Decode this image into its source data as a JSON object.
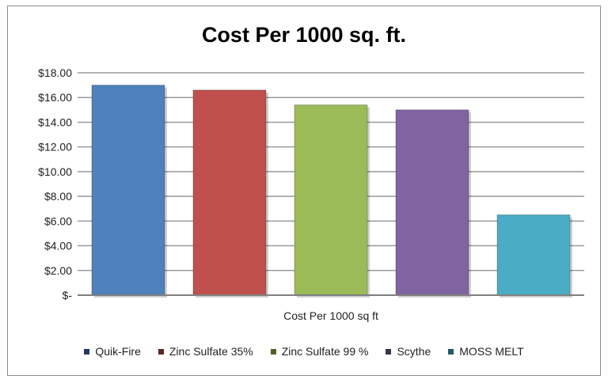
{
  "chart_data": {
    "type": "bar",
    "title": "Cost Per 1000 sq. ft.",
    "xlabel": "Cost Per 1000 sq ft",
    "ylabel": "",
    "ylim": [
      0,
      18
    ],
    "yticks": [
      {
        "value": 0,
        "label": "$-"
      },
      {
        "value": 2,
        "label": "$2.00"
      },
      {
        "value": 4,
        "label": "$4.00"
      },
      {
        "value": 6,
        "label": "$6.00"
      },
      {
        "value": 8,
        "label": "$8.00"
      },
      {
        "value": 10,
        "label": "$10.00"
      },
      {
        "value": 12,
        "label": "$12.00"
      },
      {
        "value": 14,
        "label": "$14.00"
      },
      {
        "value": 16,
        "label": "$16.00"
      },
      {
        "value": 18,
        "label": "$18.00"
      }
    ],
    "grid": true,
    "legend_position": "bottom",
    "series": [
      {
        "name": "Quik-Fire",
        "values": [
          17.0
        ],
        "color": "#4f81bd",
        "legend_color": "#1f3864"
      },
      {
        "name": "Zinc Sulfate 35%",
        "values": [
          16.6
        ],
        "color": "#c0504d",
        "legend_color": "#632523"
      },
      {
        "name": "Zinc Sulfate 99 %",
        "values": [
          15.4
        ],
        "color": "#9bbb59",
        "legend_color": "#4f6228"
      },
      {
        "name": "Scythe",
        "values": [
          15.0
        ],
        "color": "#8064a2",
        "legend_color": "#3f3151"
      },
      {
        "name": "MOSS MELT",
        "values": [
          6.5
        ],
        "color": "#4bacc6",
        "legend_color": "#215968"
      }
    ]
  }
}
